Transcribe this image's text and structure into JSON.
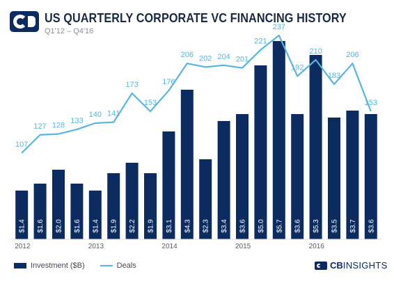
{
  "header": {
    "title": "US QUARTERLY CORPORATE VC FINANCING HISTORY",
    "subtitle": "Q1'12 – Q4'16"
  },
  "legend": {
    "investment_label": "Investment ($B)",
    "deals_label": "Deals"
  },
  "brand": {
    "cb": "CB",
    "insights": "INSIGHTS"
  },
  "colors": {
    "bar": "#0b2b61",
    "line": "#5ab4dd",
    "bar_label": "#ffffff",
    "deal_label": "#5ab4dd"
  },
  "chart_data": {
    "type": "bar+line",
    "year_labels": [
      "2012",
      "2013",
      "2014",
      "2015",
      "2016"
    ],
    "series": [
      {
        "name": "Investment ($B)",
        "type": "bar",
        "values": [
          1.4,
          1.6,
          2.0,
          1.6,
          1.4,
          1.9,
          2.2,
          1.9,
          3.1,
          4.3,
          2.3,
          3.4,
          3.6,
          5.0,
          5.7,
          3.6,
          5.3,
          3.5,
          3.7,
          3.6
        ],
        "labels": [
          "$1.4",
          "$1.6",
          "$2.0",
          "$1.6",
          "$1.4",
          "$1.9",
          "$2.2",
          "$1.9",
          "$3.1",
          "$4.3",
          "$2.3",
          "$3.4",
          "$3.6",
          "$5.0",
          "$5.7",
          "$3.6",
          "$5.3",
          "$3.5",
          "$3.7",
          "$3.6"
        ]
      },
      {
        "name": "Deals",
        "type": "line",
        "values": [
          107,
          127,
          128,
          133,
          140,
          141,
          173,
          153,
          176,
          206,
          202,
          204,
          201,
          221,
          237,
          192,
          210,
          183,
          206,
          153
        ]
      }
    ]
  }
}
